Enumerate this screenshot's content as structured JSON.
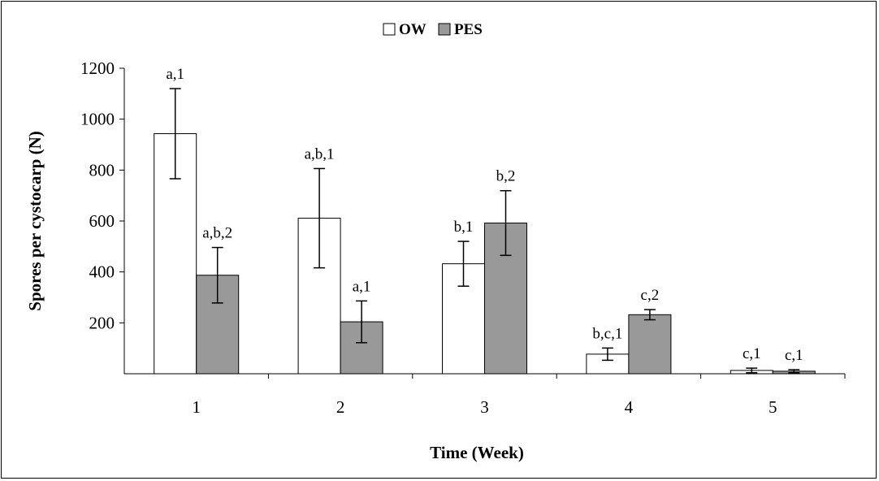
{
  "chart_data": {
    "type": "bar",
    "title": "",
    "xlabel": "Time (Week)",
    "ylabel": "Spores per cystocarp (N)",
    "categories": [
      "1",
      "2",
      "3",
      "4",
      "5"
    ],
    "ylim": [
      0,
      1200
    ],
    "yticks": [
      "1200",
      "1000",
      "800",
      "600",
      "400",
      "200"
    ],
    "legend_position": "top",
    "grid": false,
    "series": [
      {
        "name": "OW",
        "color": "#ffffff",
        "values": [
          943,
          611,
          432,
          77,
          13
        ],
        "errors": [
          177,
          195,
          88,
          24,
          9
        ],
        "labels": [
          "a,1",
          "a,b,1",
          "b,1",
          "b,c,1",
          "c,1"
        ]
      },
      {
        "name": "PES",
        "color": "#999999",
        "values": [
          387,
          204,
          592,
          232,
          10
        ],
        "errors": [
          109,
          82,
          127,
          20,
          6
        ],
        "labels": [
          "a,b,2",
          "a,1",
          "b,2",
          "c,2",
          "c,1"
        ]
      }
    ]
  }
}
